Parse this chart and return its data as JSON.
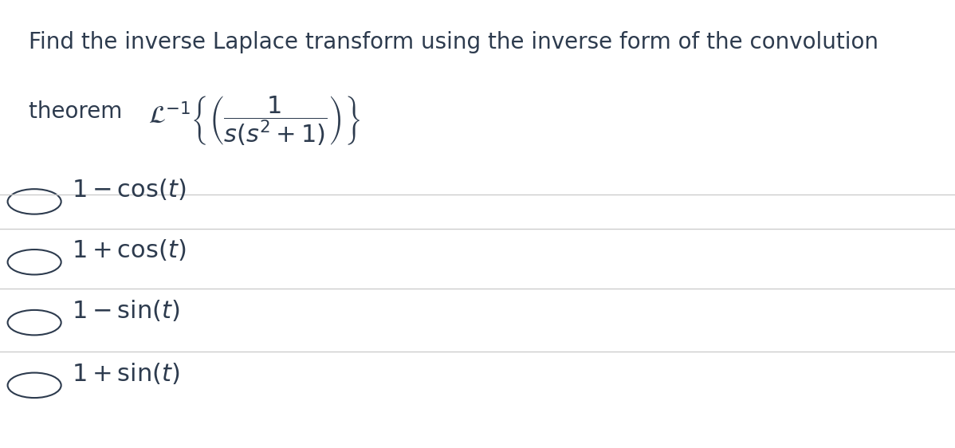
{
  "background_color": "#ffffff",
  "text_color": "#2d3b4e",
  "line_color": "#cccccc",
  "title_line1": "Find the inverse Laplace transform using the inverse form of the convolution",
  "title_line2_prefix": "theorem ",
  "formula": "$\\mathcal{L}^{-1}\\left\\{\\left(\\dfrac{1}{s(s^2+1)}\\right)\\right\\}$",
  "options": [
    "$1 - \\cos(t)$",
    "$1 + \\cos(t)$",
    "$1 - \\sin(t)$",
    "$1 + \\sin(t)$"
  ],
  "title_fontsize": 20,
  "formula_fontsize": 22,
  "option_fontsize": 22,
  "fig_width": 11.98,
  "fig_height": 5.62
}
